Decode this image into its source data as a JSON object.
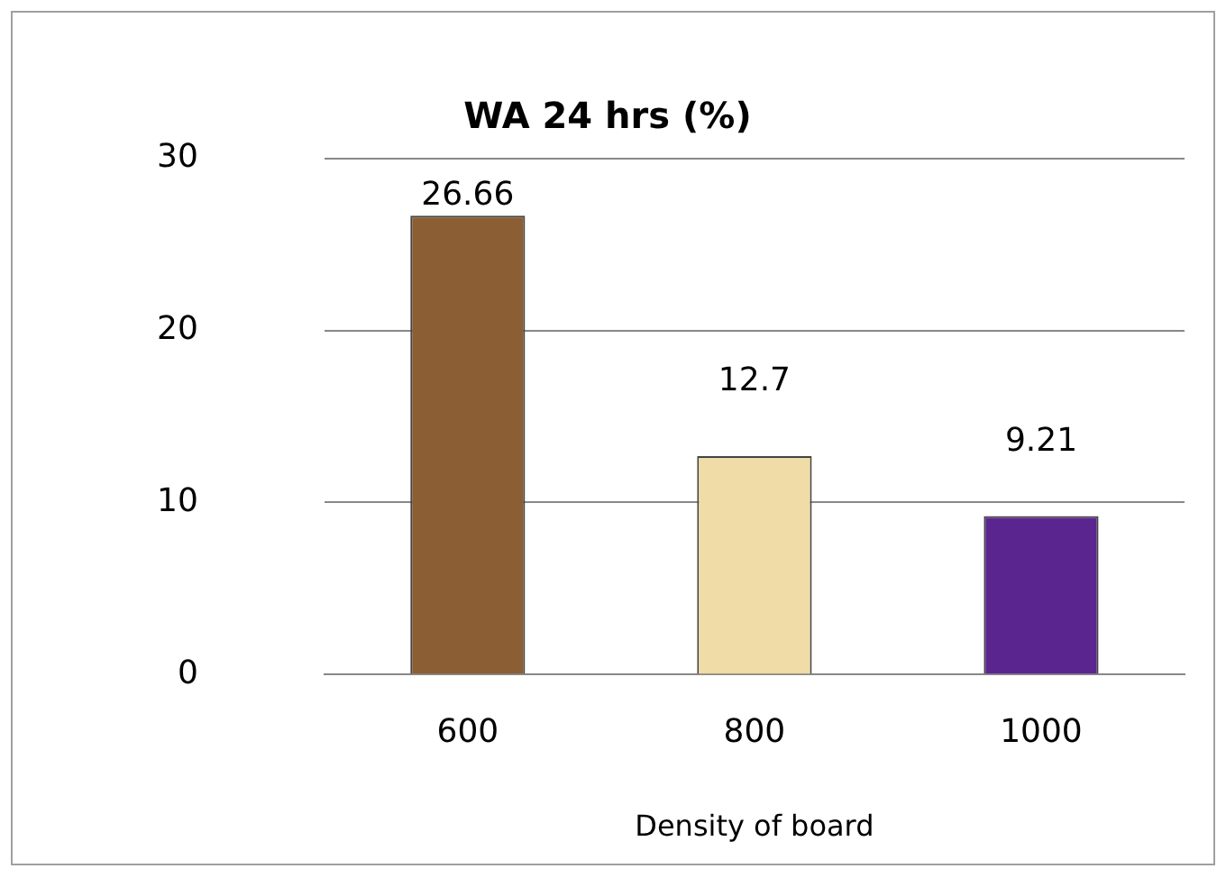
{
  "chart_data": {
    "type": "bar",
    "title": "WA 24 hrs (%)",
    "xlabel": "Density of board",
    "categories": [
      "600",
      "800",
      "1000"
    ],
    "values": [
      26.66,
      12.7,
      9.21
    ],
    "colors": [
      "#8b5e34",
      "#efdca6",
      "#5b2590"
    ],
    "ylim": [
      0,
      30
    ],
    "yticks": [
      0,
      10,
      20,
      30
    ],
    "grid": "y",
    "data_labels": true,
    "legend": false
  }
}
